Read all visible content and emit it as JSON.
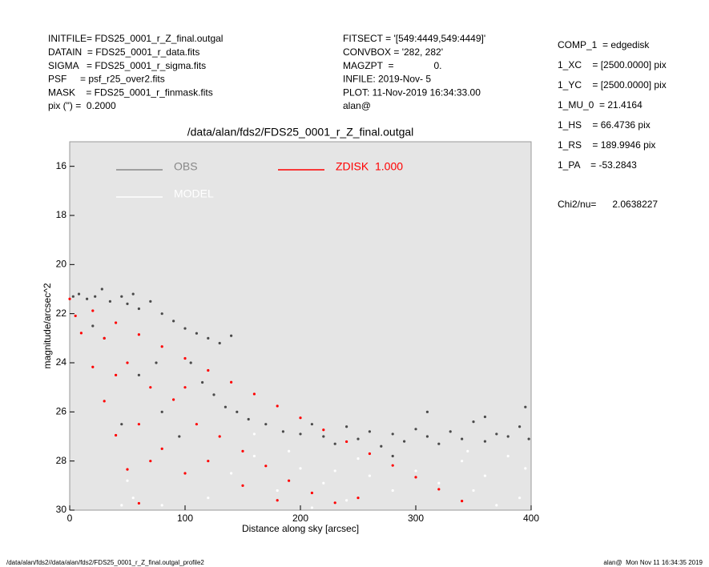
{
  "header_left": [
    "INITFILE= FDS25_0001_r_Z_final.outgal",
    "DATAIN  = FDS25_0001_r_data.fits",
    "SIGMA   = FDS25_0001_r_sigma.fits",
    "PSF     = psf_r25_over2.fits",
    "MASK    = FDS25_0001_r_finmask.fits",
    "pix (\") =  0.2000"
  ],
  "header_middle": [
    "FITSECT = '[549:4449,549:4449]'",
    "CONVBOX = '282, 282'",
    "MAGZPT  =               0.",
    "INFILE: 2019-Nov- 5",
    "PLOT: 11-Nov-2019 16:34:33.00",
    "alan@"
  ],
  "parameters": [
    "COMP_1  = edgedisk",
    "1_XC    = [2500.0000] pix",
    "1_YC    = [2500.0000] pix",
    "1_MU_0  = 21.4164",
    "1_HS    = 66.4736 pix",
    "1_RS    = 189.9946 pix",
    "1_PA    = -53.2843"
  ],
  "chi2": "Chi2/nu=      2.0638227",
  "footer_left": "/data/alan/fds2//data/alan/fds2/FDS25_0001_r_Z_final.outgal_profile2",
  "footer_right": "alan@  Mon Nov 11 16:34:35 2019",
  "chart_data": {
    "type": "scatter",
    "title": "/data/alan/fds2/FDS25_0001_r_Z_final.outgal",
    "x_label": "Distance along sky [arcsec]",
    "y_label": "magnitude/arcsec^2",
    "xlim": [
      0,
      400
    ],
    "xticks": [
      0,
      100,
      200,
      300,
      400
    ],
    "ylim": [
      15,
      30
    ],
    "yticks": [
      16,
      18,
      20,
      22,
      24,
      26,
      28,
      30
    ],
    "y_inverted": true,
    "background": "#e5e5e5",
    "series": [
      {
        "name": "OBS",
        "color": "#4a4a4a",
        "x": [
          3,
          8,
          15,
          22,
          28,
          35,
          45,
          50,
          55,
          60,
          70,
          80,
          90,
          100,
          110,
          120,
          130,
          140,
          105,
          115,
          125,
          135,
          145,
          155,
          170,
          185,
          200,
          210,
          220,
          230,
          240,
          250,
          260,
          270,
          280,
          290,
          300,
          310,
          320,
          330,
          340,
          350,
          360,
          370,
          380,
          390,
          398,
          60,
          80,
          95,
          45,
          30,
          20,
          75,
          310,
          360,
          280,
          395
        ],
        "values": [
          21.3,
          21.2,
          21.4,
          21.3,
          21.0,
          21.5,
          21.3,
          21.6,
          21.2,
          21.8,
          21.5,
          22.0,
          22.3,
          22.6,
          22.8,
          23.0,
          23.2,
          22.9,
          24.0,
          24.8,
          25.3,
          25.8,
          26.0,
          26.3,
          26.5,
          26.8,
          26.9,
          26.5,
          27.0,
          27.3,
          26.6,
          27.1,
          26.8,
          27.4,
          26.9,
          27.2,
          26.7,
          27.0,
          27.3,
          26.8,
          27.1,
          26.4,
          27.2,
          26.9,
          27.0,
          26.6,
          27.1,
          24.5,
          26.0,
          27.0,
          26.5,
          23.0,
          22.5,
          24.0,
          26.0,
          26.2,
          27.8,
          25.8
        ]
      },
      {
        "name": "MODEL",
        "color": "#ffffff",
        "x": [
          55,
          50,
          45,
          80,
          120,
          140,
          160,
          180,
          200,
          220,
          240,
          260,
          280,
          300,
          320,
          340,
          360,
          380,
          395,
          390,
          370,
          350,
          250,
          230,
          210,
          160,
          190,
          345
        ],
        "values": [
          29.5,
          28.8,
          29.8,
          29.8,
          29.5,
          28.5,
          27.8,
          29.2,
          28.3,
          28.9,
          29.6,
          28.6,
          29.2,
          28.4,
          28.9,
          28.0,
          28.6,
          27.8,
          28.3,
          29.5,
          29.8,
          29.2,
          27.9,
          28.4,
          29.9,
          26.9,
          27.6,
          27.6
        ]
      },
      {
        "name": "ZDISK  1.000",
        "color": "#ff0000",
        "x": [
          0,
          20,
          40,
          60,
          80,
          100,
          120,
          140,
          160,
          180,
          200,
          220,
          240,
          260,
          280,
          300,
          320,
          340,
          5,
          10,
          20,
          30,
          40,
          50,
          60,
          30,
          50,
          70,
          90,
          110,
          130,
          150,
          170,
          190,
          210,
          60,
          80,
          100,
          40,
          120,
          150,
          180,
          230,
          250,
          100,
          70
        ],
        "values": [
          21.4,
          21.88,
          22.37,
          22.85,
          23.34,
          23.82,
          24.31,
          24.79,
          25.27,
          25.76,
          26.24,
          26.73,
          27.21,
          27.7,
          28.18,
          28.66,
          29.15,
          29.63,
          22.09,
          22.79,
          24.17,
          25.56,
          26.95,
          28.34,
          29.72,
          23.0,
          24.0,
          25.0,
          25.5,
          26.5,
          27.0,
          27.6,
          28.2,
          28.8,
          29.3,
          26.5,
          27.5,
          28.5,
          24.5,
          28.0,
          29.0,
          29.6,
          29.7,
          29.5,
          25.0,
          28.0
        ]
      }
    ]
  }
}
